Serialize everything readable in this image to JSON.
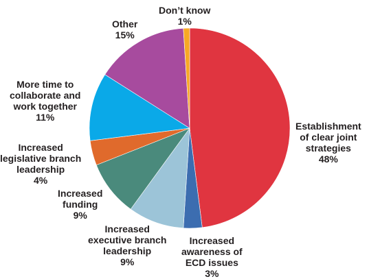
{
  "chart_data": {
    "type": "pie",
    "title": "",
    "start_angle_deg": 0,
    "direction": "clockwise",
    "slices": [
      {
        "label": "Establishment\nof clear joint\nstrategies",
        "value": 48,
        "display": "48%",
        "color": "#e03540"
      },
      {
        "label": "Increased\nawareness of\nECD issues",
        "value": 3,
        "display": "3%",
        "color": "#3c6db0"
      },
      {
        "label": "Increased\nexecutive branch\nleadership",
        "value": 9,
        "display": "9%",
        "color": "#9cc4d8"
      },
      {
        "label": "Increased\nfunding",
        "value": 9,
        "display": "9%",
        "color": "#4a8a7c"
      },
      {
        "label": "Increased\nlegislative branch\nleadership",
        "value": 4,
        "display": "4%",
        "color": "#e06a2c"
      },
      {
        "label": "More time to\ncollaborate and\nwork together",
        "value": 11,
        "display": "11%",
        "color": "#0aa9e8"
      },
      {
        "label": "Other",
        "value": 15,
        "display": "15%",
        "color": "#a74b9e"
      },
      {
        "label": "Don’t know",
        "value": 1,
        "display": "1%",
        "color": "#f7a825"
      }
    ]
  }
}
